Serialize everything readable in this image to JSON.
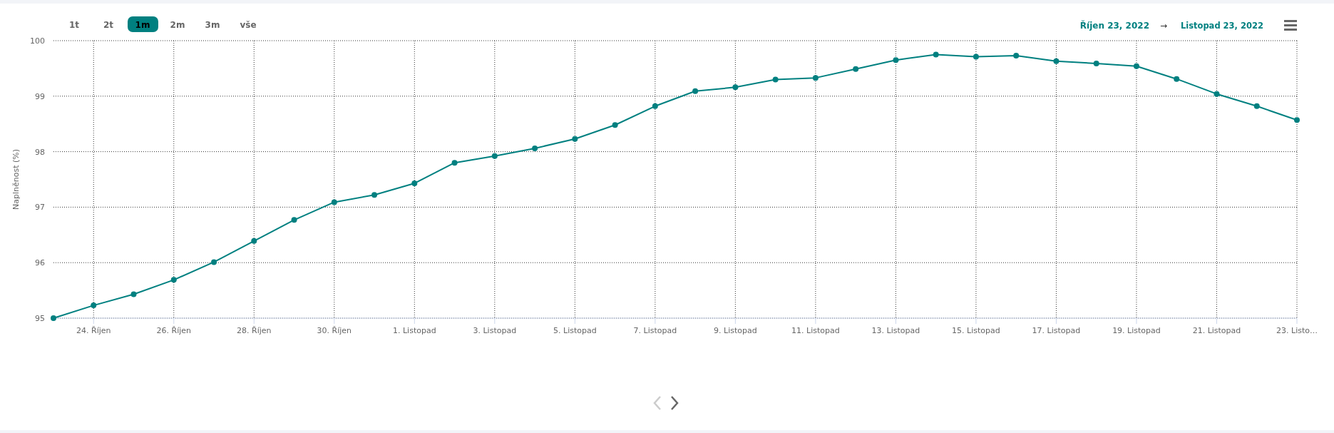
{
  "chart_data": {
    "type": "line",
    "ylabel": "Naplněnost (%)",
    "x": [
      "2022-10-23",
      "2022-10-24",
      "2022-10-25",
      "2022-10-26",
      "2022-10-27",
      "2022-10-28",
      "2022-10-29",
      "2022-10-30",
      "2022-10-31",
      "2022-11-01",
      "2022-11-02",
      "2022-11-03",
      "2022-11-04",
      "2022-11-05",
      "2022-11-06",
      "2022-11-07",
      "2022-11-08",
      "2022-11-09",
      "2022-11-10",
      "2022-11-11",
      "2022-11-12",
      "2022-11-13",
      "2022-11-14",
      "2022-11-15",
      "2022-11-16",
      "2022-11-17",
      "2022-11-18",
      "2022-11-19",
      "2022-11-20",
      "2022-11-21",
      "2022-11-22",
      "2022-11-23"
    ],
    "series": [
      {
        "color": "#008080",
        "values": [
          95.0,
          95.23,
          95.43,
          95.69,
          96.01,
          96.39,
          96.77,
          97.09,
          97.22,
          97.43,
          97.8,
          97.92,
          98.06,
          98.23,
          98.48,
          98.82,
          99.09,
          99.16,
          99.3,
          99.33,
          99.49,
          99.65,
          99.75,
          99.71,
          99.73,
          99.63,
          99.59,
          99.54,
          99.31,
          99.04,
          98.82,
          98.57
        ]
      }
    ],
    "xlim": [
      "2022-10-23",
      "2022-11-23"
    ],
    "xticks": [
      {
        "value": "2022-10-24",
        "label": "24. Říjen"
      },
      {
        "value": "2022-10-26",
        "label": "26. Říjen"
      },
      {
        "value": "2022-10-28",
        "label": "28. Říjen"
      },
      {
        "value": "2022-10-30",
        "label": "30. Říjen"
      },
      {
        "value": "2022-11-01",
        "label": "1. Listopad"
      },
      {
        "value": "2022-11-03",
        "label": "3. Listopad"
      },
      {
        "value": "2022-11-05",
        "label": "5. Listopad"
      },
      {
        "value": "2022-11-07",
        "label": "7. Listopad"
      },
      {
        "value": "2022-11-09",
        "label": "9. Listopad"
      },
      {
        "value": "2022-11-11",
        "label": "11. Listopad"
      },
      {
        "value": "2022-11-13",
        "label": "13. Listopad"
      },
      {
        "value": "2022-11-15",
        "label": "15. Listopad"
      },
      {
        "value": "2022-11-17",
        "label": "17. Listopad"
      },
      {
        "value": "2022-11-19",
        "label": "19. Listopad"
      },
      {
        "value": "2022-11-21",
        "label": "21. Listopad"
      },
      {
        "value": "2022-11-23",
        "label": "23. Listo…"
      }
    ],
    "ylim": [
      95,
      100
    ],
    "yticks": [
      95,
      96,
      97,
      98,
      99,
      100
    ],
    "grid": true,
    "marker": "circle",
    "annotations": [
      "1t",
      "2t",
      "1m",
      "2m",
      "3m",
      "vše",
      "Říjen 23, 2022",
      "→",
      "Listopad 23, 2022"
    ]
  }
}
